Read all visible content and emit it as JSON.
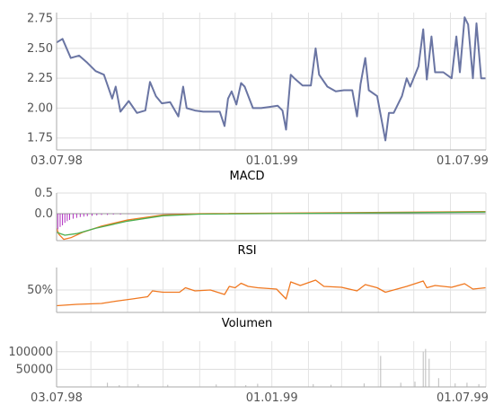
{
  "chart_data": [
    {
      "type": "line",
      "name": "price",
      "x_range": [
        "1998-07-03",
        "1999-07-01"
      ],
      "x_ticks": [
        {
          "date": "1998-07-03",
          "label": "03.07.98"
        },
        {
          "date": "1999-01-01",
          "label": "01.01.99"
        },
        {
          "date": "1999-07-01",
          "label": "01.07.99"
        }
      ],
      "ylim": [
        1.65,
        2.8
      ],
      "y_ticks": [
        {
          "value": 1.75,
          "label": "1.75"
        },
        {
          "value": 2.0,
          "label": "2.00"
        },
        {
          "value": 2.25,
          "label": "2.25"
        },
        {
          "value": 2.5,
          "label": "2.50"
        },
        {
          "value": 2.75,
          "label": "2.75"
        }
      ],
      "grid": true,
      "color": "#6a75a3",
      "points": [
        [
          "1998-07-03",
          2.55
        ],
        [
          "1998-07-08",
          2.58
        ],
        [
          "1998-07-15",
          2.42
        ],
        [
          "1998-07-22",
          2.44
        ],
        [
          "1998-07-29",
          2.38
        ],
        [
          "1998-08-05",
          2.31
        ],
        [
          "1998-08-12",
          2.28
        ],
        [
          "1998-08-19",
          2.08
        ],
        [
          "1998-08-22",
          2.18
        ],
        [
          "1998-08-26",
          1.97
        ],
        [
          "1998-09-02",
          2.06
        ],
        [
          "1998-09-09",
          1.96
        ],
        [
          "1998-09-16",
          1.98
        ],
        [
          "1998-09-20",
          2.22
        ],
        [
          "1998-09-25",
          2.1
        ],
        [
          "1998-09-30",
          2.04
        ],
        [
          "1998-10-07",
          2.05
        ],
        [
          "1998-10-14",
          1.93
        ],
        [
          "1998-10-18",
          2.18
        ],
        [
          "1998-10-21",
          2.0
        ],
        [
          "1998-10-28",
          1.98
        ],
        [
          "1998-11-04",
          1.97
        ],
        [
          "1998-11-11",
          1.97
        ],
        [
          "1998-11-18",
          1.97
        ],
        [
          "1998-11-22",
          1.85
        ],
        [
          "1998-11-25",
          2.08
        ],
        [
          "1998-11-28",
          2.14
        ],
        [
          "1998-12-02",
          2.03
        ],
        [
          "1998-12-06",
          2.21
        ],
        [
          "1998-12-09",
          2.18
        ],
        [
          "1998-12-16",
          2.0
        ],
        [
          "1998-12-23",
          2.0
        ],
        [
          "1998-12-30",
          2.01
        ],
        [
          "1999-01-06",
          2.02
        ],
        [
          "1999-01-10",
          1.98
        ],
        [
          "1999-01-13",
          1.82
        ],
        [
          "1999-01-17",
          2.28
        ],
        [
          "1999-01-20",
          2.25
        ],
        [
          "1999-01-27",
          2.19
        ],
        [
          "1999-02-03",
          2.19
        ],
        [
          "1999-02-07",
          2.5
        ],
        [
          "1999-02-10",
          2.28
        ],
        [
          "1999-02-17",
          2.18
        ],
        [
          "1999-02-24",
          2.14
        ],
        [
          "1999-03-03",
          2.15
        ],
        [
          "1999-03-10",
          2.15
        ],
        [
          "1999-03-14",
          1.93
        ],
        [
          "1999-03-17",
          2.2
        ],
        [
          "1999-03-21",
          2.42
        ],
        [
          "1999-03-24",
          2.15
        ],
        [
          "1999-03-31",
          2.1
        ],
        [
          "1999-04-07",
          1.73
        ],
        [
          "1999-04-10",
          1.96
        ],
        [
          "1999-04-14",
          1.96
        ],
        [
          "1999-04-21",
          2.1
        ],
        [
          "1999-04-25",
          2.25
        ],
        [
          "1999-04-28",
          2.18
        ],
        [
          "1999-05-05",
          2.35
        ],
        [
          "1999-05-09",
          2.66
        ],
        [
          "1999-05-12",
          2.24
        ],
        [
          "1999-05-16",
          2.6
        ],
        [
          "1999-05-19",
          2.3
        ],
        [
          "1999-05-26",
          2.3
        ],
        [
          "1999-06-02",
          2.25
        ],
        [
          "1999-06-06",
          2.6
        ],
        [
          "1999-06-09",
          2.3
        ],
        [
          "1999-06-13",
          2.76
        ],
        [
          "1999-06-16",
          2.7
        ],
        [
          "1999-06-20",
          2.25
        ],
        [
          "1999-06-23",
          2.71
        ],
        [
          "1999-06-27",
          2.25
        ],
        [
          "1999-07-01",
          2.25
        ]
      ]
    },
    {
      "type": "line",
      "name": "macd",
      "title": "MACD",
      "x_range": [
        "1998-07-03",
        "1999-07-01"
      ],
      "ylim": [
        -0.65,
        0.5
      ],
      "y_ticks": [
        {
          "value": 0.5,
          "label": "0.5"
        },
        {
          "value": 0.0,
          "label": "0.0"
        }
      ],
      "grid": true,
      "series": [
        {
          "color": "#f07820",
          "points": [
            [
              "1998-07-03",
              -0.35
            ],
            [
              "1998-07-05",
              -0.5
            ],
            [
              "1998-07-09",
              -0.62
            ],
            [
              "1998-07-15",
              -0.58
            ],
            [
              "1998-07-25",
              -0.45
            ],
            [
              "1998-08-10",
              -0.3
            ],
            [
              "1998-09-01",
              -0.15
            ],
            [
              "1998-10-01",
              -0.03
            ],
            [
              "1998-11-01",
              0.0
            ],
            [
              "1999-07-01",
              0.05
            ]
          ]
        },
        {
          "color": "#4caf50",
          "points": [
            [
              "1998-07-03",
              -0.45
            ],
            [
              "1998-07-10",
              -0.52
            ],
            [
              "1998-07-20",
              -0.48
            ],
            [
              "1998-08-05",
              -0.35
            ],
            [
              "1998-09-01",
              -0.18
            ],
            [
              "1998-10-01",
              -0.05
            ],
            [
              "1998-11-01",
              -0.01
            ],
            [
              "1999-07-01",
              0.04
            ]
          ]
        }
      ],
      "histogram": {
        "color": "#b030c0",
        "points": [
          [
            "1998-07-04",
            -0.38
          ],
          [
            "1998-07-06",
            -0.32
          ],
          [
            "1998-07-08",
            -0.28
          ],
          [
            "1998-07-10",
            -0.22
          ],
          [
            "1998-07-12",
            -0.18
          ],
          [
            "1998-07-14",
            -0.15
          ],
          [
            "1998-07-17",
            -0.12
          ],
          [
            "1998-07-20",
            -0.1
          ],
          [
            "1998-07-23",
            -0.08
          ],
          [
            "1998-07-26",
            -0.07
          ],
          [
            "1998-07-29",
            -0.06
          ],
          [
            "1998-08-02",
            -0.05
          ],
          [
            "1998-08-06",
            -0.04
          ],
          [
            "1998-08-10",
            -0.03
          ],
          [
            "1998-08-15",
            -0.03
          ],
          [
            "1998-08-20",
            -0.02
          ],
          [
            "1998-08-26",
            -0.02
          ],
          [
            "1998-09-02",
            -0.01
          ]
        ]
      }
    },
    {
      "type": "line",
      "name": "rsi",
      "title": "RSI",
      "x_range": [
        "1998-07-03",
        "1999-07-01"
      ],
      "ylim": [
        0,
        100
      ],
      "y_ticks": [
        {
          "value": 50,
          "label": "50%"
        }
      ],
      "grid": true,
      "color": "#f07820",
      "points": [
        [
          "1998-07-03",
          15
        ],
        [
          "1998-07-20",
          18
        ],
        [
          "1998-08-10",
          20
        ],
        [
          "1998-08-22",
          25
        ],
        [
          "1998-09-05",
          30
        ],
        [
          "1998-09-18",
          35
        ],
        [
          "1998-09-22",
          48
        ],
        [
          "1998-10-01",
          45
        ],
        [
          "1998-10-15",
          45
        ],
        [
          "1998-10-20",
          55
        ],
        [
          "1998-10-28",
          48
        ],
        [
          "1998-11-10",
          50
        ],
        [
          "1998-11-22",
          40
        ],
        [
          "1998-11-26",
          58
        ],
        [
          "1998-12-01",
          55
        ],
        [
          "1998-12-06",
          65
        ],
        [
          "1998-12-12",
          58
        ],
        [
          "1998-12-20",
          55
        ],
        [
          "1999-01-05",
          52
        ],
        [
          "1999-01-13",
          30
        ],
        [
          "1999-01-17",
          68
        ],
        [
          "1999-01-25",
          60
        ],
        [
          "1999-02-07",
          72
        ],
        [
          "1999-02-14",
          58
        ],
        [
          "1999-03-01",
          56
        ],
        [
          "1999-03-14",
          48
        ],
        [
          "1999-03-21",
          62
        ],
        [
          "1999-03-31",
          55
        ],
        [
          "1999-04-07",
          45
        ],
        [
          "1999-04-14",
          50
        ],
        [
          "1999-04-25",
          58
        ],
        [
          "1999-05-09",
          70
        ],
        [
          "1999-05-12",
          55
        ],
        [
          "1999-05-19",
          60
        ],
        [
          "1999-06-02",
          56
        ],
        [
          "1999-06-13",
          64
        ],
        [
          "1999-06-20",
          52
        ],
        [
          "1999-07-01",
          55
        ]
      ]
    },
    {
      "type": "bar",
      "name": "volume",
      "title": "Volumen",
      "x_range": [
        "1998-07-03",
        "1999-07-01"
      ],
      "x_ticks": [
        {
          "date": "1998-07-03",
          "label": "03.07.98"
        },
        {
          "date": "1999-01-01",
          "label": "01.01.99"
        },
        {
          "date": "1999-07-01",
          "label": "01.07.99"
        }
      ],
      "ylim": [
        0,
        130000
      ],
      "y_ticks": [
        {
          "value": 50000,
          "label": "50000"
        },
        {
          "value": 100000,
          "label": "100000"
        }
      ],
      "grid": true,
      "color": "#bbbbbb",
      "points": [
        [
          "1998-08-15",
          12000
        ],
        [
          "1998-08-25",
          5000
        ],
        [
          "1998-09-10",
          8000
        ],
        [
          "1998-10-05",
          6000
        ],
        [
          "1998-11-15",
          7000
        ],
        [
          "1998-12-10",
          5000
        ],
        [
          "1998-12-20",
          9000
        ],
        [
          "1999-02-05",
          8000
        ],
        [
          "1999-02-20",
          6000
        ],
        [
          "1999-03-20",
          10000
        ],
        [
          "1999-04-03",
          88000
        ],
        [
          "1999-04-20",
          12000
        ],
        [
          "1999-05-02",
          15000
        ],
        [
          "1999-05-09",
          100000
        ],
        [
          "1999-05-11",
          108000
        ],
        [
          "1999-05-14",
          80000
        ],
        [
          "1999-05-22",
          25000
        ],
        [
          "1999-06-05",
          10000
        ],
        [
          "1999-06-15",
          12000
        ],
        [
          "1999-06-25",
          8000
        ]
      ]
    }
  ]
}
